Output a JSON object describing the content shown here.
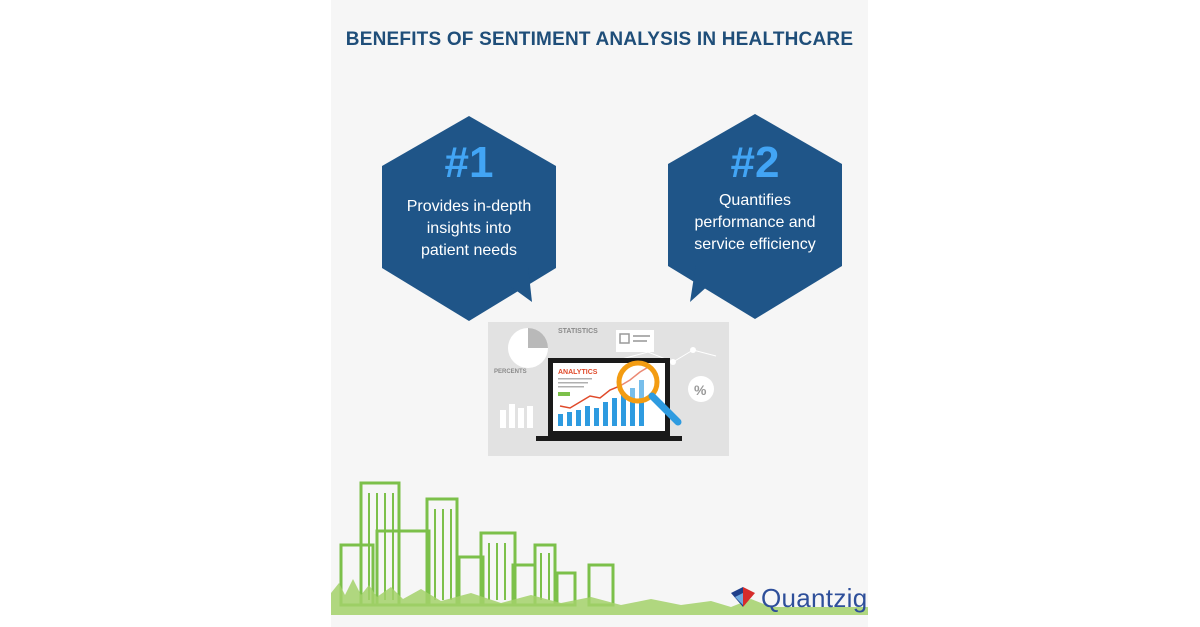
{
  "title": "BENEFITS OF SENTIMENT ANALYSIS IN HEALTHCARE",
  "benefits": [
    {
      "number": "#1",
      "text": "Provides in-depth insights into patient needs"
    },
    {
      "number": "#2",
      "text": "Quantifies performance and service efficiency"
    }
  ],
  "illustration": {
    "statistics_label": "STATISTICS",
    "percents_label": "PERCENTS",
    "analytics_label": "ANALYTICS",
    "percent_symbol": "%"
  },
  "brand": {
    "name": "Quantzig"
  },
  "colors": {
    "hex_fill": "#1f5588",
    "number_blue": "#42a5f5",
    "title": "#1f4e79",
    "city_green": "#7cc04a",
    "magnifier": "#f39c12",
    "bar_blue": "#2e9be0",
    "trend_red": "#e04a2a"
  }
}
